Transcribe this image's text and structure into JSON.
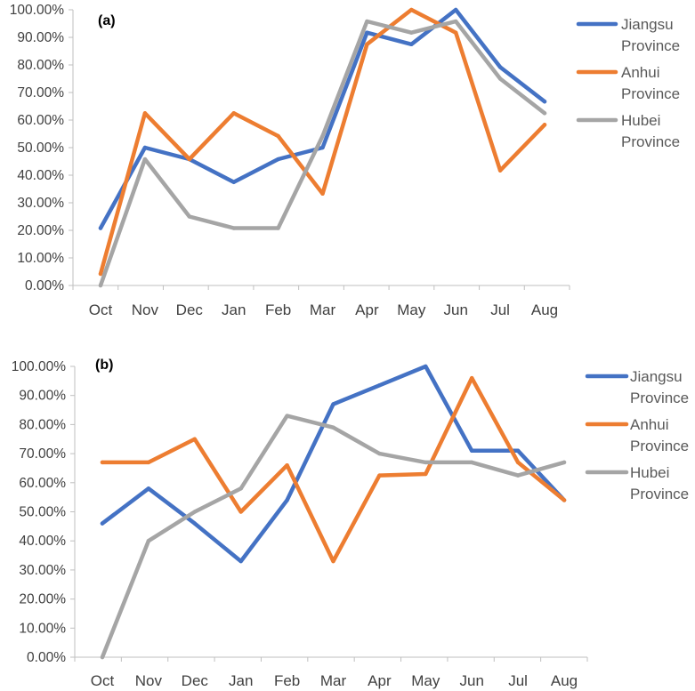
{
  "chart_data": [
    {
      "type": "line",
      "panel_label": "(a)",
      "categories": [
        "Oct",
        "Nov",
        "Dec",
        "Jan",
        "Feb",
        "Mar",
        "Apr",
        "May",
        "Jun",
        "Jul",
        "Aug"
      ],
      "ylim": [
        0,
        100
      ],
      "yticks": [
        "0.00%",
        "10.00%",
        "20.00%",
        "30.00%",
        "40.00%",
        "50.00%",
        "60.00%",
        "70.00%",
        "80.00%",
        "90.00%",
        "100.00%"
      ],
      "legend_position": "right",
      "grid": false,
      "series": [
        {
          "name": "Jiangsu Province",
          "legend_lines": [
            "Jiangsu",
            "Province"
          ],
          "color": "#4472C4",
          "values": [
            20.8,
            50.0,
            45.8,
            37.5,
            45.8,
            50.0,
            91.7,
            87.5,
            100.0,
            79.2,
            66.7
          ]
        },
        {
          "name": "Anhui Province",
          "legend_lines": [
            "Anhui",
            "Province"
          ],
          "color": "#ED7D31",
          "values": [
            4.2,
            62.5,
            45.8,
            62.5,
            54.2,
            33.3,
            87.5,
            100.0,
            91.7,
            41.7,
            58.3
          ]
        },
        {
          "name": "Hubei Province",
          "legend_lines": [
            "Hubei",
            "Province"
          ],
          "color": "#A5A5A5",
          "values": [
            0.0,
            45.8,
            25.0,
            20.8,
            20.8,
            54.2,
            95.8,
            91.7,
            95.8,
            75.0,
            62.5
          ]
        }
      ]
    },
    {
      "type": "line",
      "panel_label": "(b)",
      "categories": [
        "Oct",
        "Nov",
        "Dec",
        "Jan",
        "Feb",
        "Mar",
        "Apr",
        "May",
        "Jun",
        "Jul",
        "Aug"
      ],
      "ylim": [
        0,
        100
      ],
      "yticks": [
        "0.00%",
        "10.00%",
        "20.00%",
        "30.00%",
        "40.00%",
        "50.00%",
        "60.00%",
        "70.00%",
        "80.00%",
        "90.00%",
        "100.00%"
      ],
      "legend_position": "right",
      "grid": false,
      "series": [
        {
          "name": "Jiangsu Province",
          "legend_lines": [
            "Jiangsu",
            "Province"
          ],
          "color": "#4472C4",
          "values": [
            46.0,
            58.0,
            46.0,
            33.0,
            54.0,
            87.0,
            93.5,
            100.0,
            71.0,
            71.0,
            54.0
          ]
        },
        {
          "name": "Anhui Province",
          "legend_lines": [
            "Anhui",
            "Province"
          ],
          "color": "#ED7D31",
          "values": [
            67.0,
            67.0,
            75.0,
            50.0,
            66.0,
            33.0,
            62.5,
            63.0,
            96.0,
            67.0,
            54.0
          ]
        },
        {
          "name": "Hubei Province",
          "legend_lines": [
            "Hubei",
            "Province"
          ],
          "color": "#A5A5A5",
          "values": [
            0.0,
            40.0,
            50.0,
            58.0,
            83.0,
            79.0,
            70.0,
            67.0,
            67.0,
            62.5,
            67.0
          ]
        }
      ]
    }
  ]
}
